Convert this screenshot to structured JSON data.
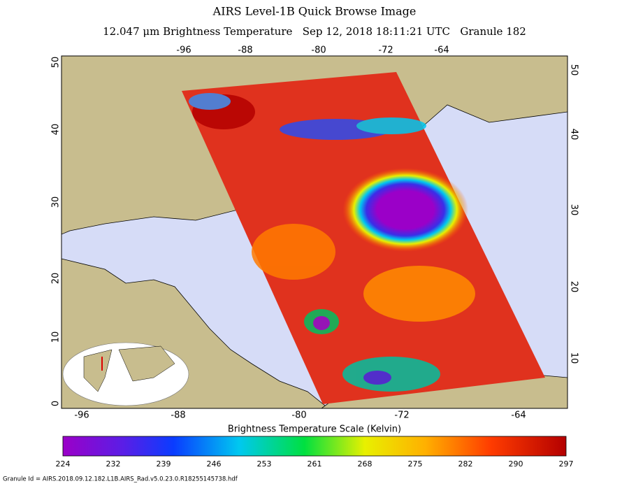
{
  "header": {
    "title": "AIRS Level-1B Quick Browse Image",
    "subtitle": "12.047 μm Brightness Temperature   Sep 12, 2018 18:11:21 UTC   Granule 182"
  },
  "map": {
    "top_ticks": [
      -96,
      -88,
      -80,
      -72,
      -64
    ],
    "bottom_ticks": [
      -96,
      -88,
      -80,
      -72,
      -64
    ],
    "left_ticks": [
      0,
      10,
      20,
      30,
      40,
      50
    ],
    "right_ticks": [
      50,
      40,
      30,
      20,
      10
    ]
  },
  "colorbar": {
    "title": "Brightness Temperature Scale (Kelvin)",
    "labels": [
      224,
      232,
      239,
      246,
      253,
      261,
      268,
      275,
      282,
      290,
      297
    ]
  },
  "footer": "Granule Id = AIRS.2018.09.12.182.L1B.AIRS_Rad.v5.0.23.0.R18255145738.hdf"
}
